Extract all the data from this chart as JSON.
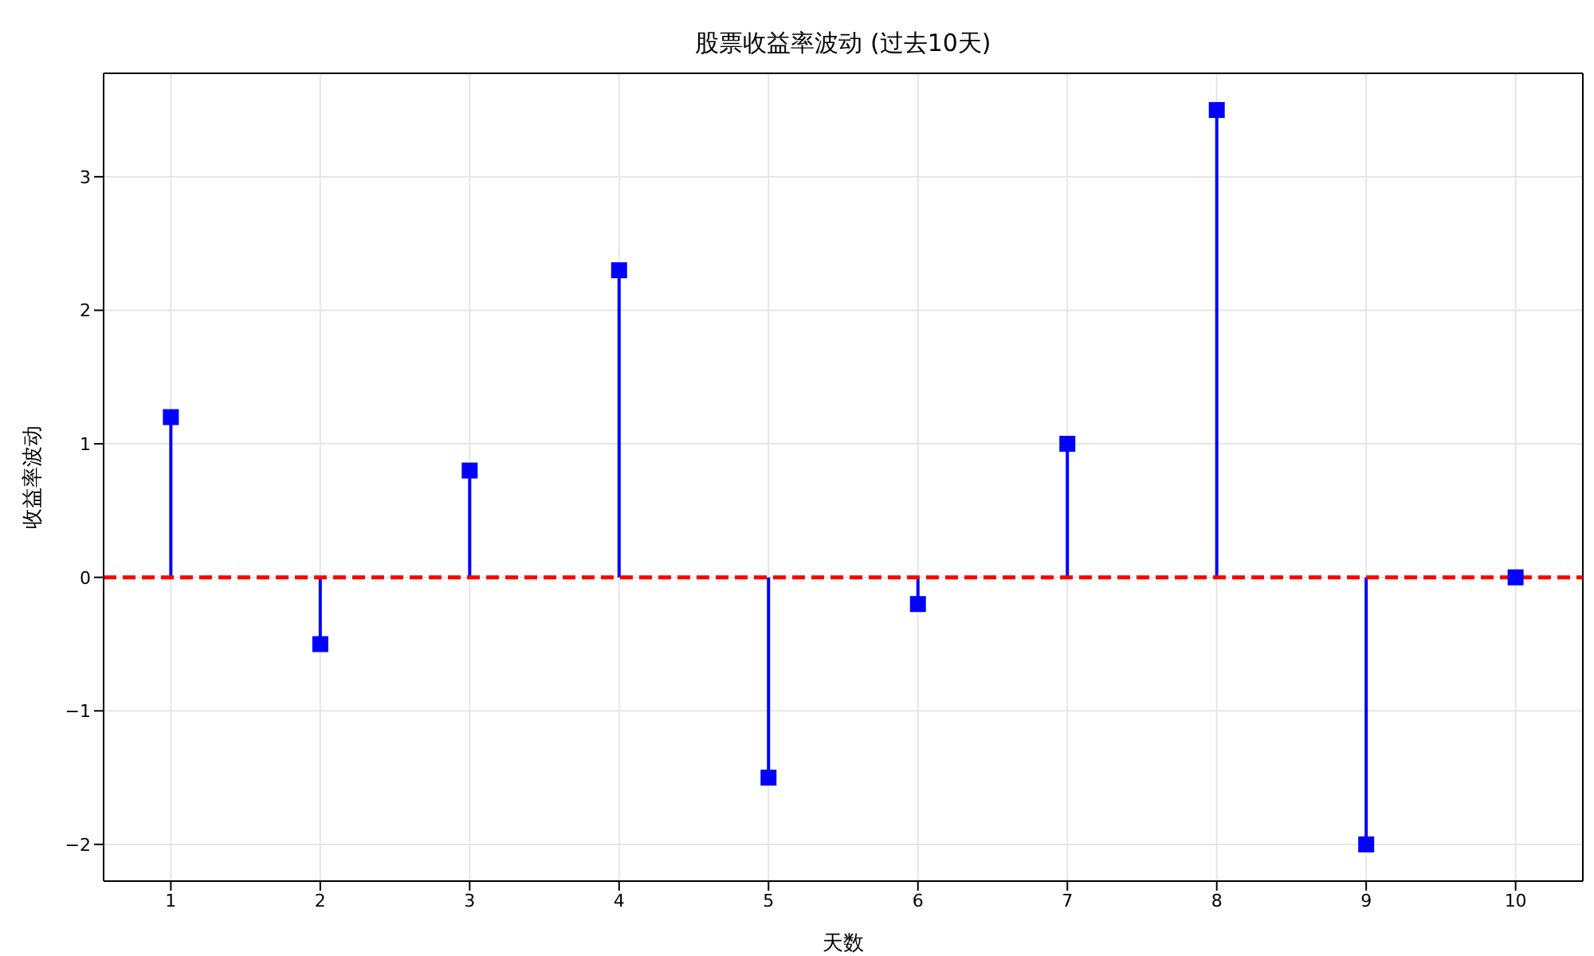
{
  "chart_data": {
    "type": "lollipop",
    "title": "股票收益率波动 (过去10天)",
    "xlabel": "天数",
    "ylabel": "收益率波动",
    "x": [
      1,
      2,
      3,
      4,
      5,
      6,
      7,
      8,
      9,
      10
    ],
    "values": [
      1.2,
      -0.5,
      0.8,
      2.3,
      -1.5,
      -0.2,
      1.0,
      3.5,
      -2.0,
      0.0
    ],
    "color": "#0000ff",
    "marker": "square",
    "xlim": [
      0.55,
      10.45
    ],
    "xticks": [
      1,
      2,
      3,
      4,
      5,
      6,
      7,
      8,
      9,
      10
    ],
    "ylim": [
      -2.275,
      3.775
    ],
    "yticks": [
      -2,
      -1,
      0,
      1,
      2,
      3
    ],
    "grid": true,
    "ref_lines": [
      {
        "axis": "y",
        "value": 0,
        "color": "#ff0000",
        "line_style": "dashed"
      }
    ]
  }
}
